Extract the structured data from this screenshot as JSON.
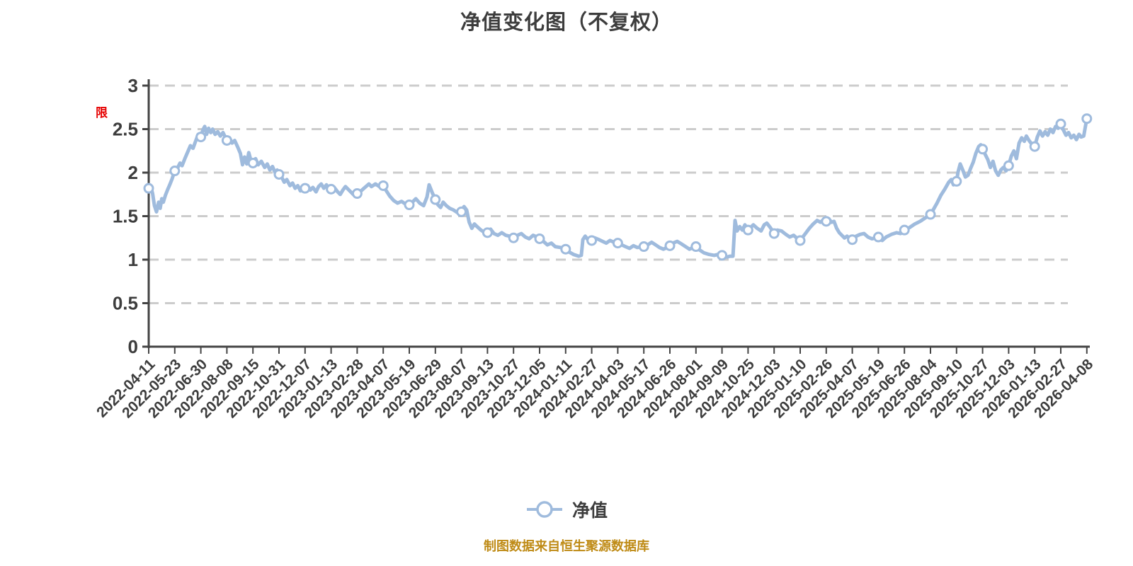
{
  "header": {
    "title": "净值变化图（不复权）"
  },
  "annotations": {
    "limit_badge": "限"
  },
  "legend": {
    "label": "净值",
    "marker": "circle-on-line"
  },
  "footer": {
    "text": "制图数据来自恒生聚源数据库"
  },
  "colors": {
    "line": "#9fbbdd",
    "marker_fill": "#ffffff",
    "grid": "#cccccc",
    "axis": "#444444",
    "label": "#3d3d3d",
    "title": "#3d3d3d",
    "badge_red": "#e60000",
    "footer": "#bf8b16",
    "background": "#ffffff"
  },
  "chart_data": {
    "type": "line",
    "title": "净值变化图（不复权）",
    "series_name": "净值",
    "xlabel": "",
    "ylabel": "",
    "ylim": [
      0,
      3
    ],
    "yticks": [
      0,
      0.5,
      1,
      1.5,
      2,
      2.5,
      3
    ],
    "grid": "horizontal-dashed",
    "legend_position": "bottom-center",
    "categories": [
      "2022-04-11",
      "2022-05-23",
      "2022-06-30",
      "2022-08-08",
      "2022-09-15",
      "2022-10-31",
      "2022-12-07",
      "2023-01-13",
      "2023-02-28",
      "2023-04-07",
      "2023-05-19",
      "2023-06-29",
      "2023-08-07",
      "2023-09-13",
      "2023-10-27",
      "2023-12-05",
      "2024-01-11",
      "2024-02-27",
      "2024-04-03",
      "2024-05-17",
      "2024-06-26",
      "2024-08-01",
      "2024-09-09",
      "2024-10-25",
      "2024-12-03",
      "2025-01-10",
      "2025-02-26",
      "2025-04-07",
      "2025-05-19",
      "2025-06-26",
      "2025-08-04",
      "2025-09-10",
      "2025-10-27",
      "2025-12-03",
      "2026-01-13",
      "2026-02-27",
      "2026-04-08"
    ],
    "markers": [
      1.82,
      2.02,
      2.41,
      2.37,
      2.11,
      1.98,
      1.82,
      1.81,
      1.76,
      1.85,
      1.63,
      1.69,
      1.55,
      1.31,
      1.25,
      1.24,
      1.12,
      1.22,
      1.19,
      1.15,
      1.16,
      1.15,
      1.05,
      1.34,
      1.3,
      1.22,
      1.44,
      1.23,
      1.26,
      1.34,
      1.52,
      1.9,
      2.27,
      2.08,
      2.3,
      2.56,
      2.62
    ],
    "path": [
      [
        0,
        1.82
      ],
      [
        0.08,
        1.84
      ],
      [
        0.15,
        1.76
      ],
      [
        0.22,
        1.62
      ],
      [
        0.3,
        1.55
      ],
      [
        0.38,
        1.66
      ],
      [
        0.44,
        1.59
      ],
      [
        0.5,
        1.7
      ],
      [
        0.56,
        1.66
      ],
      [
        0.64,
        1.74
      ],
      [
        0.72,
        1.8
      ],
      [
        0.82,
        1.87
      ],
      [
        0.9,
        1.93
      ],
      [
        1,
        2.02
      ],
      [
        1.1,
        2.05
      ],
      [
        1.2,
        2.11
      ],
      [
        1.28,
        2.08
      ],
      [
        1.4,
        2.17
      ],
      [
        1.5,
        2.24
      ],
      [
        1.6,
        2.31
      ],
      [
        1.7,
        2.28
      ],
      [
        1.8,
        2.36
      ],
      [
        1.9,
        2.44
      ],
      [
        2,
        2.41
      ],
      [
        2.08,
        2.49
      ],
      [
        2.15,
        2.53
      ],
      [
        2.22,
        2.44
      ],
      [
        2.3,
        2.51
      ],
      [
        2.38,
        2.46
      ],
      [
        2.45,
        2.5
      ],
      [
        2.55,
        2.44
      ],
      [
        2.65,
        2.47
      ],
      [
        2.75,
        2.42
      ],
      [
        2.85,
        2.46
      ],
      [
        2.95,
        2.4
      ],
      [
        3,
        2.37
      ],
      [
        3.1,
        2.4
      ],
      [
        3.2,
        2.34
      ],
      [
        3.3,
        2.37
      ],
      [
        3.42,
        2.29
      ],
      [
        3.52,
        2.22
      ],
      [
        3.6,
        2.09
      ],
      [
        3.68,
        2.18
      ],
      [
        3.76,
        2.1
      ],
      [
        3.84,
        2.23
      ],
      [
        3.92,
        2.14
      ],
      [
        4,
        2.11
      ],
      [
        4.1,
        2.16
      ],
      [
        4.2,
        2.09
      ],
      [
        4.32,
        2.13
      ],
      [
        4.45,
        2.06
      ],
      [
        4.55,
        2.1
      ],
      [
        4.65,
        2.03
      ],
      [
        4.75,
        2.07
      ],
      [
        4.85,
        2
      ],
      [
        4.93,
        2.03
      ],
      [
        5,
        1.98
      ],
      [
        5.1,
        1.95
      ],
      [
        5.2,
        1.89
      ],
      [
        5.3,
        1.92
      ],
      [
        5.42,
        1.85
      ],
      [
        5.52,
        1.88
      ],
      [
        5.62,
        1.82
      ],
      [
        5.72,
        1.85
      ],
      [
        5.82,
        1.79
      ],
      [
        5.92,
        1.82
      ],
      [
        6,
        1.82
      ],
      [
        6.1,
        1.85
      ],
      [
        6.2,
        1.8
      ],
      [
        6.3,
        1.83
      ],
      [
        6.42,
        1.78
      ],
      [
        6.52,
        1.84
      ],
      [
        6.62,
        1.87
      ],
      [
        6.72,
        1.82
      ],
      [
        6.82,
        1.86
      ],
      [
        6.92,
        1.81
      ],
      [
        7,
        1.81
      ],
      [
        7.12,
        1.83
      ],
      [
        7.25,
        1.78
      ],
      [
        7.35,
        1.75
      ],
      [
        7.45,
        1.8
      ],
      [
        7.55,
        1.84
      ],
      [
        7.65,
        1.81
      ],
      [
        7.75,
        1.78
      ],
      [
        7.85,
        1.75
      ],
      [
        7.95,
        1.77
      ],
      [
        8,
        1.76
      ],
      [
        8.15,
        1.79
      ],
      [
        8.3,
        1.83
      ],
      [
        8.45,
        1.87
      ],
      [
        8.55,
        1.84
      ],
      [
        8.7,
        1.87
      ],
      [
        8.85,
        1.84
      ],
      [
        9,
        1.85
      ],
      [
        9.12,
        1.79
      ],
      [
        9.25,
        1.73
      ],
      [
        9.4,
        1.68
      ],
      [
        9.55,
        1.65
      ],
      [
        9.7,
        1.67
      ],
      [
        9.85,
        1.64
      ],
      [
        10,
        1.63
      ],
      [
        10.12,
        1.66
      ],
      [
        10.25,
        1.7
      ],
      [
        10.4,
        1.65
      ],
      [
        10.55,
        1.62
      ],
      [
        10.68,
        1.72
      ],
      [
        10.76,
        1.86
      ],
      [
        10.88,
        1.77
      ],
      [
        11,
        1.69
      ],
      [
        11.1,
        1.63
      ],
      [
        11.2,
        1.6
      ],
      [
        11.3,
        1.66
      ],
      [
        11.42,
        1.62
      ],
      [
        11.55,
        1.59
      ],
      [
        11.7,
        1.57
      ],
      [
        11.85,
        1.54
      ],
      [
        12,
        1.55
      ],
      [
        12.1,
        1.61
      ],
      [
        12.2,
        1.57
      ],
      [
        12.3,
        1.43
      ],
      [
        12.4,
        1.36
      ],
      [
        12.5,
        1.41
      ],
      [
        12.6,
        1.38
      ],
      [
        12.75,
        1.34
      ],
      [
        12.9,
        1.31
      ],
      [
        13,
        1.31
      ],
      [
        13.12,
        1.35
      ],
      [
        13.25,
        1.3
      ],
      [
        13.4,
        1.28
      ],
      [
        13.55,
        1.31
      ],
      [
        13.7,
        1.28
      ],
      [
        13.85,
        1.27
      ],
      [
        14,
        1.25
      ],
      [
        14.15,
        1.28
      ],
      [
        14.3,
        1.3
      ],
      [
        14.45,
        1.26
      ],
      [
        14.6,
        1.24
      ],
      [
        14.75,
        1.28
      ],
      [
        14.9,
        1.26
      ],
      [
        15,
        1.24
      ],
      [
        15.15,
        1.21
      ],
      [
        15.3,
        1.17
      ],
      [
        15.45,
        1.19
      ],
      [
        15.6,
        1.15
      ],
      [
        15.8,
        1.14
      ],
      [
        16,
        1.12
      ],
      [
        16.12,
        1.09
      ],
      [
        16.3,
        1.06
      ],
      [
        16.5,
        1.04
      ],
      [
        16.6,
        1.05
      ],
      [
        16.66,
        1.23
      ],
      [
        16.75,
        1.27
      ],
      [
        16.85,
        1.23
      ],
      [
        17,
        1.22
      ],
      [
        17.12,
        1.25
      ],
      [
        17.28,
        1.23
      ],
      [
        17.42,
        1.21
      ],
      [
        17.56,
        1.19
      ],
      [
        17.7,
        1.22
      ],
      [
        17.85,
        1.2
      ],
      [
        18,
        1.19
      ],
      [
        18.15,
        1.17
      ],
      [
        18.3,
        1.15
      ],
      [
        18.45,
        1.13
      ],
      [
        18.6,
        1.16
      ],
      [
        18.75,
        1.14
      ],
      [
        19,
        1.15
      ],
      [
        19.15,
        1.17
      ],
      [
        19.3,
        1.2
      ],
      [
        19.45,
        1.17
      ],
      [
        19.6,
        1.14
      ],
      [
        19.75,
        1.12
      ],
      [
        19.9,
        1.14
      ],
      [
        20,
        1.16
      ],
      [
        20.12,
        1.19
      ],
      [
        20.28,
        1.21
      ],
      [
        20.45,
        1.18
      ],
      [
        20.6,
        1.15
      ],
      [
        20.75,
        1.12
      ],
      [
        20.9,
        1.14
      ],
      [
        21,
        1.15
      ],
      [
        21.15,
        1.11
      ],
      [
        21.3,
        1.08
      ],
      [
        21.5,
        1.06
      ],
      [
        21.7,
        1.05
      ],
      [
        21.85,
        1.06
      ],
      [
        22,
        1.05
      ],
      [
        22.1,
        1.04
      ],
      [
        22.2,
        1.03
      ],
      [
        22.3,
        1.04
      ],
      [
        22.42,
        1.04
      ],
      [
        22.5,
        1.45
      ],
      [
        22.58,
        1.33
      ],
      [
        22.68,
        1.38
      ],
      [
        22.78,
        1.34
      ],
      [
        22.88,
        1.4
      ],
      [
        22.95,
        1.36
      ],
      [
        23,
        1.34
      ],
      [
        23.1,
        1.37
      ],
      [
        23.2,
        1.4
      ],
      [
        23.35,
        1.36
      ],
      [
        23.5,
        1.33
      ],
      [
        23.62,
        1.4
      ],
      [
        23.72,
        1.42
      ],
      [
        23.85,
        1.37
      ],
      [
        24,
        1.3
      ],
      [
        24.12,
        1.34
      ],
      [
        24.28,
        1.33
      ],
      [
        24.45,
        1.29
      ],
      [
        24.6,
        1.26
      ],
      [
        24.75,
        1.28
      ],
      [
        24.9,
        1.24
      ],
      [
        25,
        1.22
      ],
      [
        25.1,
        1.26
      ],
      [
        25.2,
        1.3
      ],
      [
        25.35,
        1.36
      ],
      [
        25.5,
        1.41
      ],
      [
        25.65,
        1.45
      ],
      [
        25.78,
        1.43
      ],
      [
        25.9,
        1.46
      ],
      [
        26,
        1.44
      ],
      [
        26.1,
        1.47
      ],
      [
        26.2,
        1.43
      ],
      [
        26.3,
        1.44
      ],
      [
        26.4,
        1.36
      ],
      [
        26.5,
        1.31
      ],
      [
        26.6,
        1.28
      ],
      [
        26.7,
        1.25
      ],
      [
        26.8,
        1.27
      ],
      [
        26.9,
        1.24
      ],
      [
        27,
        1.23
      ],
      [
        27.15,
        1.27
      ],
      [
        27.3,
        1.29
      ],
      [
        27.45,
        1.3
      ],
      [
        27.6,
        1.26
      ],
      [
        27.75,
        1.24
      ],
      [
        27.9,
        1.25
      ],
      [
        28,
        1.26
      ],
      [
        28.15,
        1.22
      ],
      [
        28.3,
        1.26
      ],
      [
        28.5,
        1.29
      ],
      [
        28.7,
        1.31
      ],
      [
        28.85,
        1.3
      ],
      [
        29,
        1.34
      ],
      [
        29.2,
        1.37
      ],
      [
        29.4,
        1.41
      ],
      [
        29.6,
        1.44
      ],
      [
        29.8,
        1.48
      ],
      [
        30,
        1.52
      ],
      [
        30.1,
        1.57
      ],
      [
        30.25,
        1.65
      ],
      [
        30.4,
        1.74
      ],
      [
        30.55,
        1.81
      ],
      [
        30.7,
        1.89
      ],
      [
        30.8,
        1.92
      ],
      [
        30.88,
        1.86
      ],
      [
        30.95,
        1.88
      ],
      [
        31,
        1.9
      ],
      [
        31.06,
        2.01
      ],
      [
        31.14,
        2.1
      ],
      [
        31.24,
        2.03
      ],
      [
        31.34,
        1.95
      ],
      [
        31.44,
        1.97
      ],
      [
        31.54,
        2.05
      ],
      [
        31.64,
        2.12
      ],
      [
        31.74,
        2.22
      ],
      [
        31.85,
        2.3
      ],
      [
        31.93,
        2.32
      ],
      [
        32,
        2.27
      ],
      [
        32.1,
        2.21
      ],
      [
        32.2,
        2.15
      ],
      [
        32.3,
        2.06
      ],
      [
        32.4,
        2.13
      ],
      [
        32.5,
        2.02
      ],
      [
        32.6,
        1.97
      ],
      [
        32.7,
        2.03
      ],
      [
        32.8,
        2.06
      ],
      [
        32.9,
        2.02
      ],
      [
        33,
        2.08
      ],
      [
        33.1,
        2.19
      ],
      [
        33.2,
        2.25
      ],
      [
        33.3,
        2.16
      ],
      [
        33.4,
        2.34
      ],
      [
        33.5,
        2.4
      ],
      [
        33.6,
        2.36
      ],
      [
        33.68,
        2.42
      ],
      [
        33.78,
        2.37
      ],
      [
        33.88,
        2.33
      ],
      [
        33.95,
        2.29
      ],
      [
        34,
        2.3
      ],
      [
        34.1,
        2.41
      ],
      [
        34.2,
        2.48
      ],
      [
        34.3,
        2.42
      ],
      [
        34.4,
        2.47
      ],
      [
        34.5,
        2.43
      ],
      [
        34.6,
        2.5
      ],
      [
        34.7,
        2.46
      ],
      [
        34.8,
        2.53
      ],
      [
        34.9,
        2.51
      ],
      [
        35,
        2.56
      ],
      [
        35.1,
        2.49
      ],
      [
        35.2,
        2.43
      ],
      [
        35.3,
        2.46
      ],
      [
        35.4,
        2.4
      ],
      [
        35.5,
        2.43
      ],
      [
        35.6,
        2.38
      ],
      [
        35.7,
        2.44
      ],
      [
        35.78,
        2.41
      ],
      [
        35.88,
        2.42
      ],
      [
        35.95,
        2.54
      ],
      [
        36,
        2.62
      ]
    ]
  }
}
